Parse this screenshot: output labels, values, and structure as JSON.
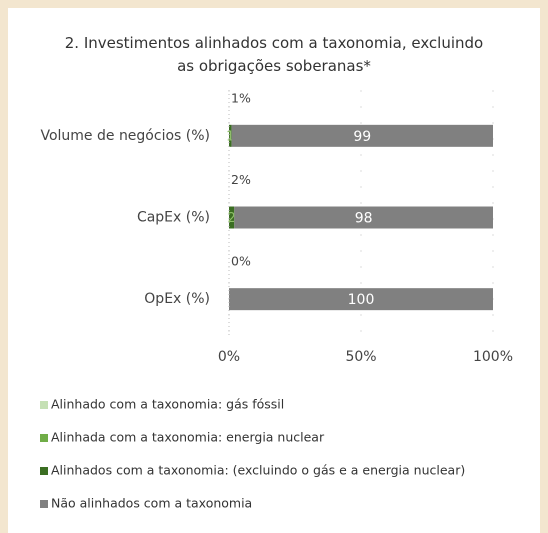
{
  "chart_data": {
    "type": "stacked_barh",
    "title": "2. Investimentos alinhados com a taxonomia, excluindo as obrigações soberanas*",
    "categories": [
      "Volume de negócios (%)",
      "CapEx (%)",
      "OpEx (%)"
    ],
    "series": [
      {
        "name": "Alinhado com a taxonomia: gás fóssil",
        "color": "#c5e0b4",
        "values": [
          0,
          0,
          0
        ]
      },
      {
        "name": "Alinhada com a taxonomia: energia nuclear",
        "color": "#70ad47",
        "values": [
          0,
          0,
          0
        ]
      },
      {
        "name": "Alinhados com a taxonomia: (excluindo o gás e a energia nuclear)",
        "color": "#3b6e22",
        "values": [
          1,
          2,
          0
        ]
      },
      {
        "name": "Não alinhados com a taxonomia",
        "color": "#808080",
        "values": [
          99,
          98,
          100
        ]
      }
    ],
    "annotations": [
      "1%",
      "2%",
      "0%"
    ],
    "xlim": [
      0,
      100
    ],
    "xticks": [
      {
        "value": 0,
        "label": "0%"
      },
      {
        "value": 50,
        "label": "50%"
      },
      {
        "value": 100,
        "label": "100%"
      }
    ],
    "grid": true
  }
}
